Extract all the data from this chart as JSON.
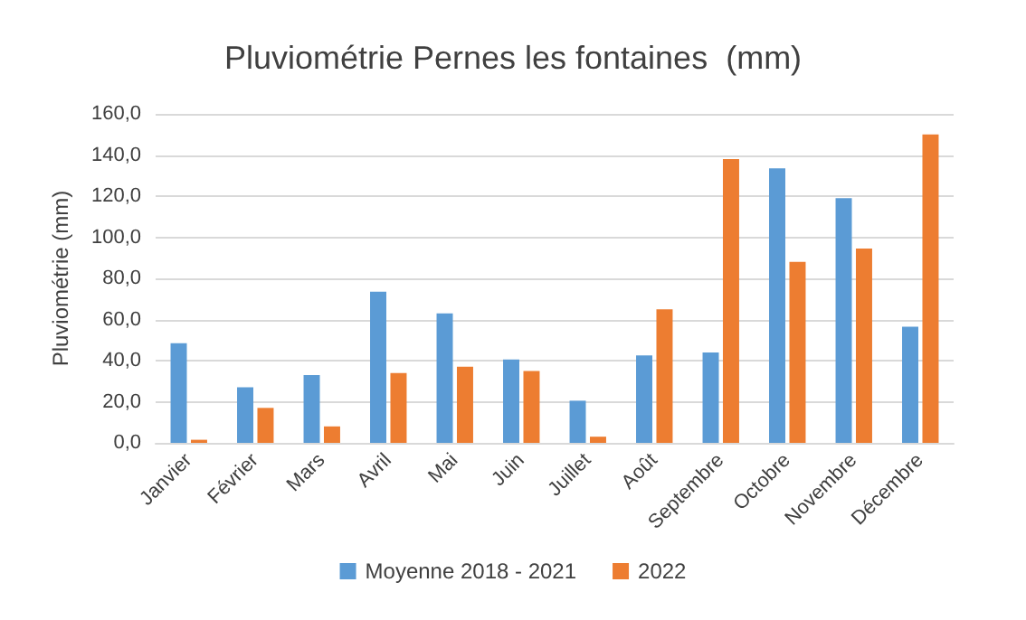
{
  "chart_data": {
    "type": "bar",
    "title": "Pluviométrie Pernes les fontaines  (mm)",
    "ylabel": "Pluviométrie (mm)",
    "categories": [
      "Janvier",
      "Février",
      "Mars",
      "Avril",
      "Mai",
      "Juin",
      "Juillet",
      "Août",
      "Septembre",
      "Octobre",
      "Novembre",
      "Décembre"
    ],
    "series": [
      {
        "name": "Moyenne 2018 - 2021",
        "color": "#5b9bd5",
        "values": [
          48.5,
          27,
          33,
          73.5,
          63,
          40.5,
          20.5,
          42.5,
          44,
          133.5,
          119,
          56.5
        ]
      },
      {
        "name": "2022",
        "color": "#ed7d31",
        "values": [
          1.5,
          17,
          8,
          34,
          37,
          35,
          3,
          65,
          138,
          88,
          94.5,
          150
        ]
      }
    ],
    "ylim": [
      0,
      160
    ],
    "yticks": [
      {
        "value": 0,
        "label": "0,0"
      },
      {
        "value": 20,
        "label": "20,0"
      },
      {
        "value": 40,
        "label": "40,0"
      },
      {
        "value": 60,
        "label": "60,0"
      },
      {
        "value": 80,
        "label": "80,0"
      },
      {
        "value": 100,
        "label": "100,0"
      },
      {
        "value": 120,
        "label": "120,0"
      },
      {
        "value": 140,
        "label": "140,0"
      },
      {
        "value": 160,
        "label": "160,0"
      }
    ],
    "grid": "y",
    "legend": "bottom"
  }
}
